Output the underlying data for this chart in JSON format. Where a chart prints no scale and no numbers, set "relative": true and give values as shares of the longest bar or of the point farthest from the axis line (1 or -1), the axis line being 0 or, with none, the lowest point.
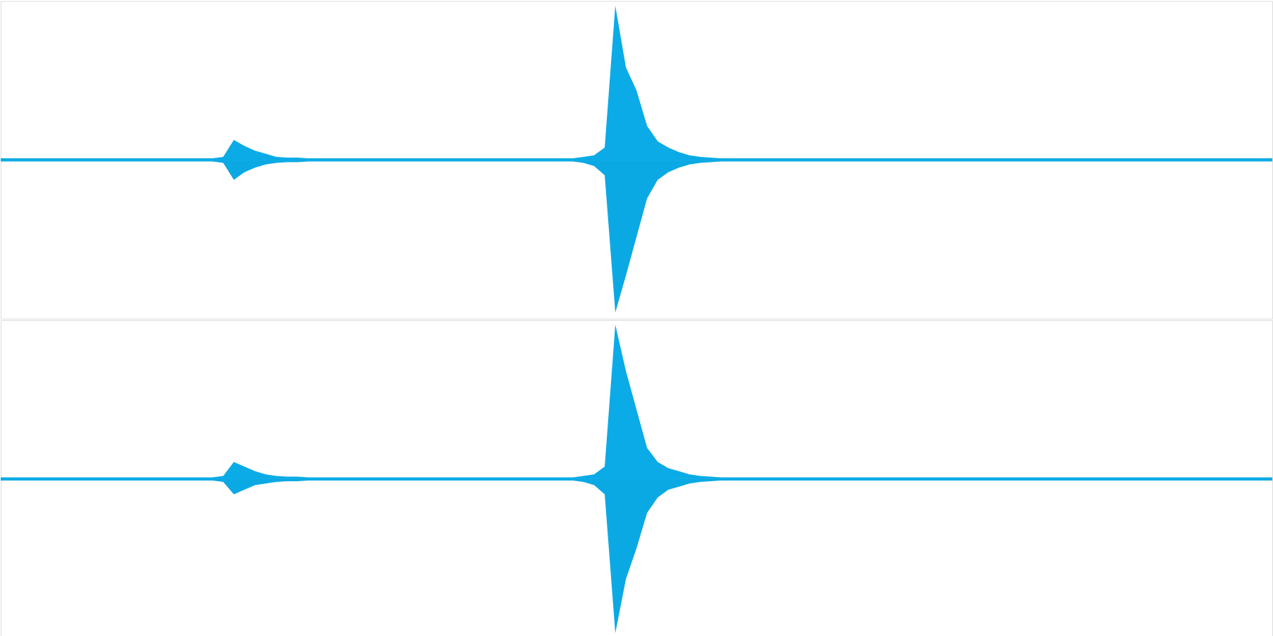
{
  "chart_data": [
    {
      "type": "area",
      "relative": true,
      "categories": [
        null,
        null,
        null,
        null,
        null,
        null,
        null,
        null,
        null,
        null,
        null,
        null,
        null,
        null,
        null,
        null,
        null,
        null,
        null,
        null,
        null,
        null,
        null,
        null,
        null,
        null,
        null,
        null,
        null,
        null,
        null,
        null,
        null,
        null,
        null,
        null,
        null,
        null,
        null,
        null,
        null,
        null,
        null,
        null,
        null,
        null,
        null,
        null,
        null,
        null,
        null,
        null,
        null,
        null,
        null,
        null,
        null,
        null,
        null,
        null,
        null,
        null,
        null,
        null,
        null,
        null,
        null,
        null,
        null,
        null,
        null,
        null,
        null,
        null,
        null,
        null,
        null,
        null,
        null,
        null,
        null,
        null,
        null,
        null,
        null,
        null,
        null,
        null,
        null,
        null,
        null,
        null,
        null,
        null,
        null,
        null,
        null,
        null,
        null,
        null,
        null,
        null,
        null,
        null,
        null,
        null,
        null,
        null,
        null,
        null,
        null,
        null,
        null,
        null,
        null,
        null,
        null,
        null,
        null,
        null,
        null
      ],
      "series": [
        {
          "color": "#0aabe6",
          "values": [
            0.01,
            0.01,
            0.01,
            0.01,
            0.01,
            0.01,
            0.01,
            0.01,
            0.01,
            0.01,
            0.01,
            0.01,
            0.01,
            0.01,
            0.01,
            0.01,
            0.01,
            0.01,
            0.01,
            0.01,
            0.01,
            0.02,
            0.13,
            0.09,
            0.06,
            0.04,
            0.02,
            0.015,
            0.015,
            0.01,
            0.01,
            0.01,
            0.01,
            0.01,
            0.01,
            0.01,
            0.01,
            0.01,
            0.01,
            0.01,
            0.01,
            0.01,
            0.01,
            0.01,
            0.01,
            0.01,
            0.01,
            0.01,
            0.01,
            0.01,
            0.01,
            0.01,
            0.01,
            0.01,
            0.01,
            0.02,
            0.03,
            0.08,
            1.0,
            0.6,
            0.45,
            0.22,
            0.12,
            0.08,
            0.05,
            0.03,
            0.02,
            0.015,
            0.01,
            0.01,
            0.01,
            0.01,
            0.01,
            0.01,
            0.01,
            0.01,
            0.01,
            0.01,
            0.01,
            0.01,
            0.01,
            0.01,
            0.01,
            0.01,
            0.01,
            0.01,
            0.01,
            0.01,
            0.01,
            0.01,
            0.01,
            0.01,
            0.01,
            0.01,
            0.01,
            0.01,
            0.01,
            0.01,
            0.01,
            0.01,
            0.01,
            0.01,
            0.01,
            0.01,
            0.01,
            0.01,
            0.01,
            0.01,
            0.01,
            0.01,
            0.01,
            0.01,
            0.01,
            0.01,
            0.01,
            0.01,
            0.01,
            0.01,
            0.01,
            0.01,
            0.01
          ]
        },
        {
          "color": "#0ba9e4",
          "values": [
            -0.01,
            -0.01,
            -0.01,
            -0.01,
            -0.01,
            -0.01,
            -0.01,
            -0.01,
            -0.01,
            -0.01,
            -0.01,
            -0.01,
            -0.01,
            -0.01,
            -0.01,
            -0.01,
            -0.01,
            -0.01,
            -0.01,
            -0.01,
            -0.01,
            -0.02,
            -0.13,
            -0.08,
            -0.05,
            -0.03,
            -0.02,
            -0.015,
            -0.015,
            -0.01,
            -0.01,
            -0.01,
            -0.01,
            -0.01,
            -0.01,
            -0.01,
            -0.01,
            -0.01,
            -0.01,
            -0.01,
            -0.01,
            -0.01,
            -0.01,
            -0.01,
            -0.01,
            -0.01,
            -0.01,
            -0.01,
            -0.01,
            -0.01,
            -0.01,
            -0.01,
            -0.01,
            -0.01,
            -0.01,
            -0.02,
            -0.04,
            -0.1,
            -0.99,
            -0.75,
            -0.5,
            -0.25,
            -0.13,
            -0.08,
            -0.05,
            -0.03,
            -0.02,
            -0.015,
            -0.01,
            -0.01,
            -0.01,
            -0.01,
            -0.01,
            -0.01,
            -0.01,
            -0.01,
            -0.01,
            -0.01,
            -0.01,
            -0.01,
            -0.01,
            -0.01,
            -0.01,
            -0.01,
            -0.01,
            -0.01,
            -0.01,
            -0.01,
            -0.01,
            -0.01,
            -0.01,
            -0.01,
            -0.01,
            -0.01,
            -0.01,
            -0.01,
            -0.01,
            -0.01,
            -0.01,
            -0.01,
            -0.01,
            -0.01,
            -0.01,
            -0.01,
            -0.01,
            -0.01,
            -0.01,
            -0.01,
            -0.01,
            -0.01,
            -0.01,
            -0.01,
            -0.01,
            -0.01,
            -0.01,
            -0.01,
            -0.01,
            -0.01,
            -0.01,
            -0.01,
            -0.01
          ]
        }
      ]
    },
    {
      "type": "area",
      "relative": true,
      "categories": [
        null,
        null,
        null,
        null,
        null,
        null,
        null,
        null,
        null,
        null,
        null,
        null,
        null,
        null,
        null,
        null,
        null,
        null,
        null,
        null,
        null,
        null,
        null,
        null,
        null,
        null,
        null,
        null,
        null,
        null,
        null,
        null,
        null,
        null,
        null,
        null,
        null,
        null,
        null,
        null,
        null,
        null,
        null,
        null,
        null,
        null,
        null,
        null,
        null,
        null,
        null,
        null,
        null,
        null,
        null,
        null,
        null,
        null,
        null,
        null,
        null,
        null,
        null,
        null,
        null,
        null,
        null,
        null,
        null,
        null,
        null,
        null,
        null,
        null,
        null,
        null,
        null,
        null,
        null,
        null,
        null,
        null,
        null,
        null,
        null,
        null,
        null,
        null,
        null,
        null,
        null,
        null,
        null,
        null,
        null,
        null,
        null,
        null,
        null,
        null,
        null,
        null,
        null,
        null,
        null,
        null,
        null,
        null,
        null,
        null,
        null,
        null,
        null,
        null,
        null,
        null,
        null,
        null,
        null,
        null,
        null
      ],
      "series": [
        {
          "color": "#0aabe6",
          "values": [
            0.01,
            0.01,
            0.01,
            0.01,
            0.01,
            0.01,
            0.01,
            0.01,
            0.01,
            0.01,
            0.01,
            0.01,
            0.01,
            0.01,
            0.01,
            0.01,
            0.01,
            0.01,
            0.01,
            0.01,
            0.01,
            0.02,
            0.11,
            0.08,
            0.05,
            0.03,
            0.02,
            0.015,
            0.015,
            0.01,
            0.01,
            0.01,
            0.01,
            0.01,
            0.01,
            0.01,
            0.01,
            0.01,
            0.01,
            0.01,
            0.01,
            0.01,
            0.01,
            0.01,
            0.01,
            0.01,
            0.01,
            0.01,
            0.01,
            0.01,
            0.01,
            0.01,
            0.01,
            0.01,
            0.01,
            0.02,
            0.03,
            0.08,
            1.0,
            0.7,
            0.45,
            0.2,
            0.11,
            0.07,
            0.05,
            0.03,
            0.02,
            0.015,
            0.01,
            0.01,
            0.01,
            0.01,
            0.01,
            0.01,
            0.01,
            0.01,
            0.01,
            0.01,
            0.01,
            0.01,
            0.01,
            0.01,
            0.01,
            0.01,
            0.01,
            0.01,
            0.01,
            0.01,
            0.01,
            0.01,
            0.01,
            0.01,
            0.01,
            0.01,
            0.01,
            0.01,
            0.01,
            0.01,
            0.01,
            0.01,
            0.01,
            0.01,
            0.01,
            0.01,
            0.01,
            0.01,
            0.01,
            0.01,
            0.01,
            0.01,
            0.01,
            0.01,
            0.01,
            0.01,
            0.01,
            0.01,
            0.01,
            0.01,
            0.01,
            0.01,
            0.01
          ]
        },
        {
          "color": "#0ba9e4",
          "values": [
            -0.01,
            -0.01,
            -0.01,
            -0.01,
            -0.01,
            -0.01,
            -0.01,
            -0.01,
            -0.01,
            -0.01,
            -0.01,
            -0.01,
            -0.01,
            -0.01,
            -0.01,
            -0.01,
            -0.01,
            -0.01,
            -0.01,
            -0.01,
            -0.01,
            -0.02,
            -0.1,
            -0.07,
            -0.04,
            -0.03,
            -0.02,
            -0.015,
            -0.015,
            -0.01,
            -0.01,
            -0.01,
            -0.01,
            -0.01,
            -0.01,
            -0.01,
            -0.01,
            -0.01,
            -0.01,
            -0.01,
            -0.01,
            -0.01,
            -0.01,
            -0.01,
            -0.01,
            -0.01,
            -0.01,
            -0.01,
            -0.01,
            -0.01,
            -0.01,
            -0.01,
            -0.01,
            -0.01,
            -0.01,
            -0.02,
            -0.04,
            -0.1,
            -1.0,
            -0.65,
            -0.45,
            -0.22,
            -0.12,
            -0.07,
            -0.05,
            -0.03,
            -0.02,
            -0.015,
            -0.01,
            -0.01,
            -0.01,
            -0.01,
            -0.01,
            -0.01,
            -0.01,
            -0.01,
            -0.01,
            -0.01,
            -0.01,
            -0.01,
            -0.01,
            -0.01,
            -0.01,
            -0.01,
            -0.01,
            -0.01,
            -0.01,
            -0.01,
            -0.01,
            -0.01,
            -0.01,
            -0.01,
            -0.01,
            -0.01,
            -0.01,
            -0.01,
            -0.01,
            -0.01,
            -0.01,
            -0.01,
            -0.01,
            -0.01,
            -0.01,
            -0.01,
            -0.01,
            -0.01,
            -0.01,
            -0.01,
            -0.01,
            -0.01,
            -0.01,
            -0.01,
            -0.01,
            -0.01,
            -0.01,
            -0.01,
            -0.01,
            -0.01,
            -0.01,
            -0.01,
            -0.01
          ]
        }
      ]
    }
  ]
}
